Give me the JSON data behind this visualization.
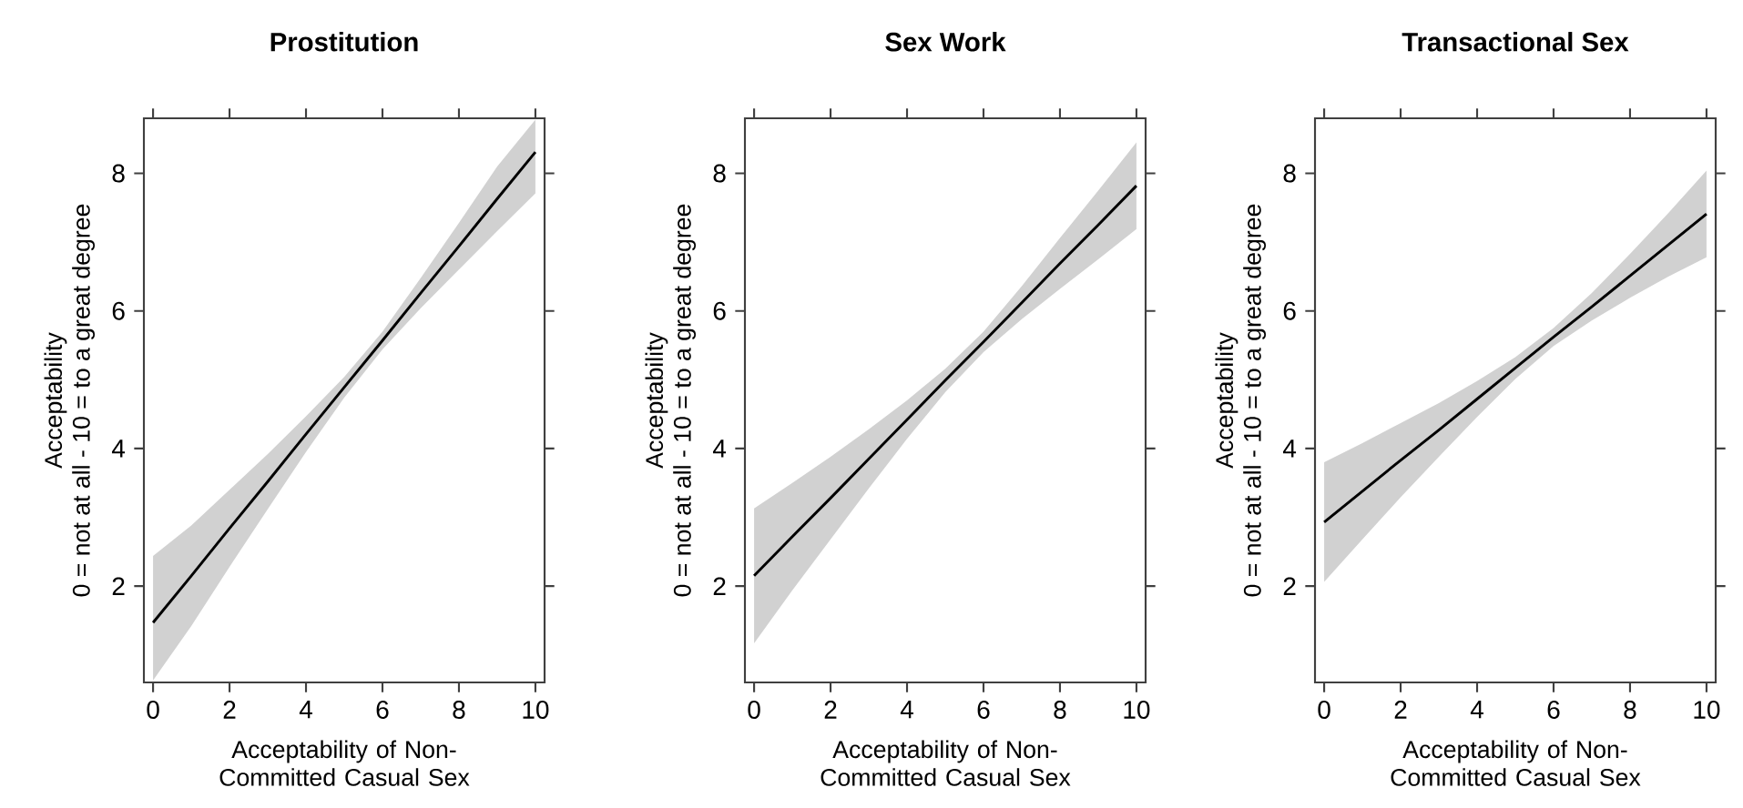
{
  "chart_data": [
    {
      "type": "line",
      "title": "Prostitution",
      "xlabel": "Acceptability of Non-Committed Casual Sex",
      "ylabel": "Acceptability\n0 = not at all - 10 = to a great degree",
      "xlim": [
        -0.24,
        10.24
      ],
      "ylim": [
        0.6,
        8.8
      ],
      "xticks": [
        0,
        2,
        4,
        6,
        8,
        10
      ],
      "yticks": [
        2,
        4,
        6,
        8
      ],
      "grid": false,
      "marker": "none",
      "line_style": "solid",
      "series": [
        {
          "color": "#000000",
          "x": [
            0,
            1,
            2,
            3,
            4,
            5,
            6,
            7,
            8,
            9,
            10
          ],
          "values": [
            1.47,
            2.15,
            2.84,
            3.52,
            4.21,
            4.89,
            5.57,
            6.26,
            6.94,
            7.63,
            8.31
          ],
          "lower": [
            0.63,
            1.42,
            2.28,
            3.12,
            3.95,
            4.74,
            5.44,
            6.04,
            6.6,
            7.16,
            7.71
          ],
          "upper": [
            2.44,
            2.88,
            3.4,
            3.92,
            4.47,
            5.04,
            5.7,
            6.48,
            7.28,
            8.1,
            8.78
          ]
        }
      ]
    },
    {
      "type": "line",
      "title": "Sex Work",
      "xlabel": "Acceptability of Non-Committed Casual Sex",
      "ylabel": "Acceptability\n0 = not at all - 10 = to a great degree",
      "xlim": [
        -0.24,
        10.24
      ],
      "ylim": [
        0.6,
        8.8
      ],
      "xticks": [
        0,
        2,
        4,
        6,
        8,
        10
      ],
      "yticks": [
        2,
        4,
        6,
        8
      ],
      "grid": false,
      "marker": "none",
      "line_style": "solid",
      "series": [
        {
          "color": "#000000",
          "x": [
            0,
            1,
            2,
            3,
            4,
            5,
            6,
            7,
            8,
            9,
            10
          ],
          "values": [
            2.15,
            2.72,
            3.28,
            3.85,
            4.42,
            4.99,
            5.55,
            6.12,
            6.69,
            7.25,
            7.82
          ],
          "lower": [
            1.17,
            1.94,
            2.68,
            3.42,
            4.14,
            4.82,
            5.4,
            5.88,
            6.32,
            6.75,
            7.19
          ],
          "upper": [
            3.13,
            3.5,
            3.88,
            4.28,
            4.7,
            5.16,
            5.7,
            6.36,
            7.06,
            7.75,
            8.45
          ]
        }
      ]
    },
    {
      "type": "line",
      "title": "Transactional Sex",
      "xlabel": "Acceptability of Non-Committed Casual Sex",
      "ylabel": "Acceptability\n0 = not at all - 10 = to a great degree",
      "xlim": [
        -0.24,
        10.24
      ],
      "ylim": [
        0.6,
        8.8
      ],
      "xticks": [
        0,
        2,
        4,
        6,
        8,
        10
      ],
      "yticks": [
        2,
        4,
        6,
        8
      ],
      "grid": false,
      "marker": "none",
      "line_style": "solid",
      "series": [
        {
          "color": "#000000",
          "x": [
            0,
            1,
            2,
            3,
            4,
            5,
            6,
            7,
            8,
            9,
            10
          ],
          "values": [
            2.93,
            3.38,
            3.83,
            4.27,
            4.72,
            5.17,
            5.62,
            6.06,
            6.51,
            6.96,
            7.41
          ],
          "lower": [
            2.06,
            2.68,
            3.29,
            3.88,
            4.46,
            5.01,
            5.49,
            5.86,
            6.19,
            6.5,
            6.78
          ],
          "upper": [
            3.8,
            4.08,
            4.37,
            4.66,
            4.98,
            5.33,
            5.75,
            6.26,
            6.83,
            7.42,
            8.04
          ]
        }
      ]
    }
  ]
}
